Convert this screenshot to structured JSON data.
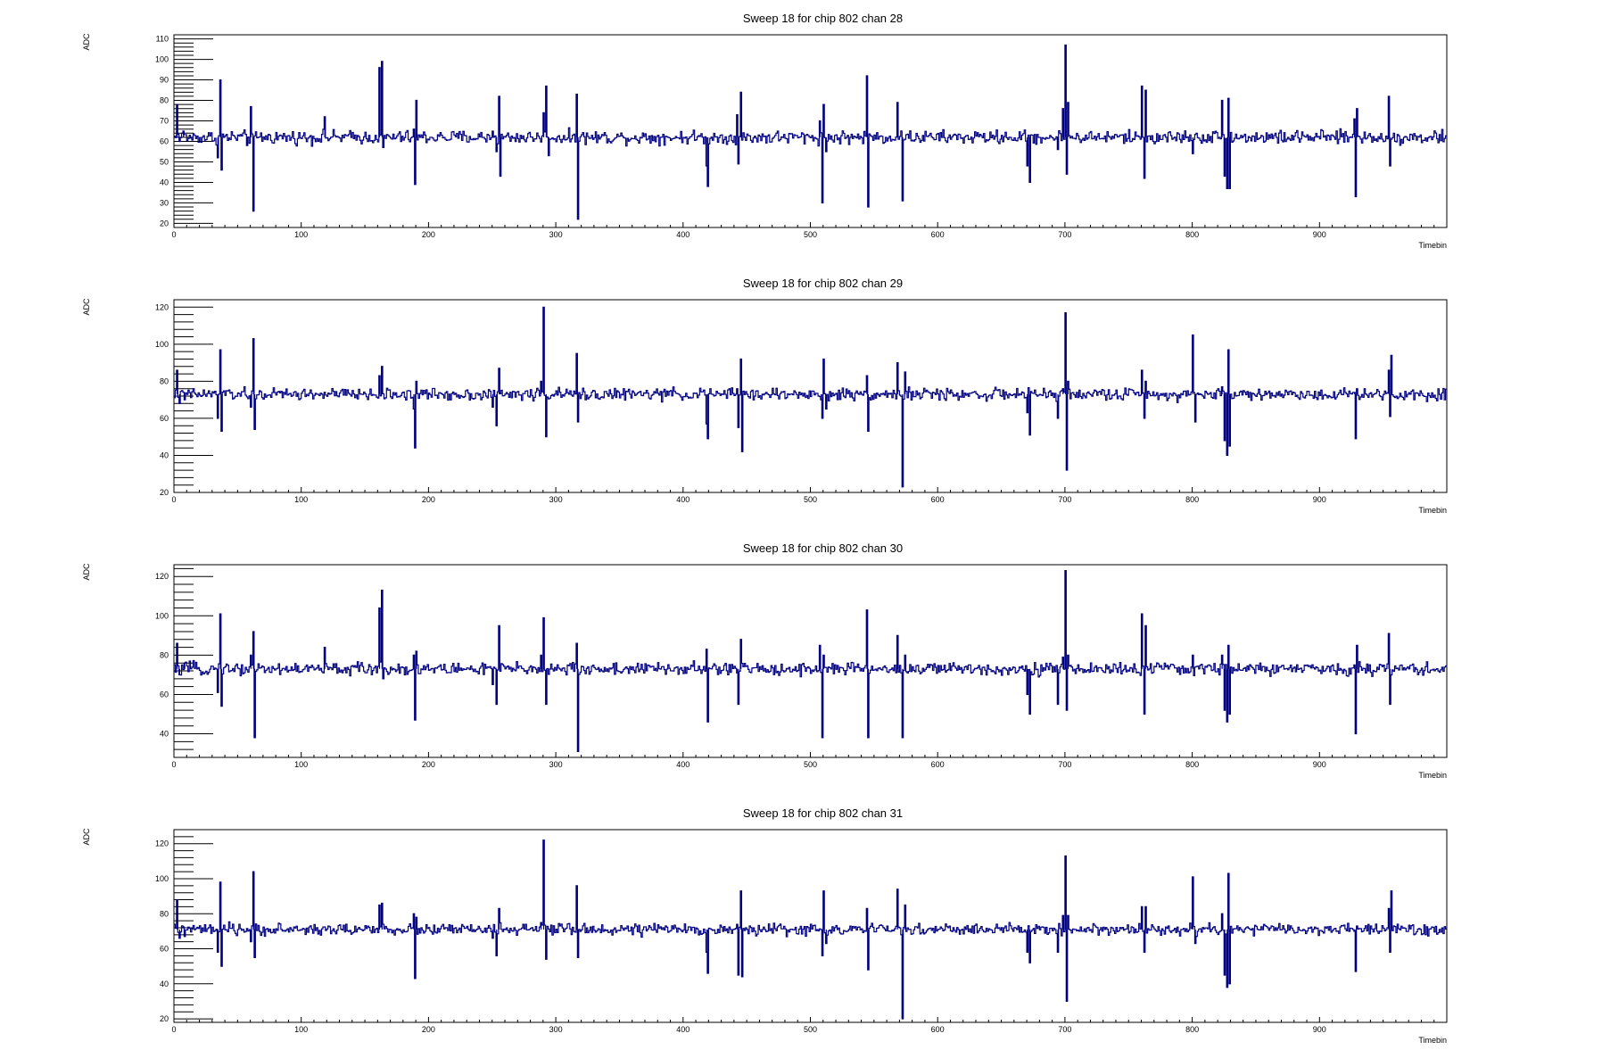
{
  "colors": {
    "series": "#000080",
    "axis": "#000000",
    "background": "#ffffff"
  },
  "chart_data": [
    {
      "type": "line",
      "title": "Sweep 18 for chip 802 chan 28",
      "xlabel": "Timebin",
      "ylabel": "ADC",
      "xlim": [
        0,
        1000
      ],
      "ylim": [
        18,
        112
      ],
      "xticks": [
        0,
        100,
        200,
        300,
        400,
        500,
        600,
        700,
        800,
        900
      ],
      "yticks": [
        20,
        30,
        40,
        50,
        60,
        70,
        80,
        90,
        100,
        110
      ],
      "series": [
        {
          "baseline": 62,
          "spikes": [
            [
              2,
              78
            ],
            [
              4,
              60
            ],
            [
              7,
              65
            ],
            [
              34,
              52
            ],
            [
              36,
              90
            ],
            [
              37,
              46
            ],
            [
              57,
              58
            ],
            [
              60,
              77
            ],
            [
              62,
              26
            ],
            [
              118,
              72
            ],
            [
              161,
              96
            ],
            [
              163,
              99
            ],
            [
              164,
              57
            ],
            [
              188,
              66
            ],
            [
              189,
              39
            ],
            [
              190,
              80
            ],
            [
              250,
              65
            ],
            [
              253,
              55
            ],
            [
              255,
              82
            ],
            [
              256,
              43
            ],
            [
              290,
              74
            ],
            [
              292,
              87
            ],
            [
              294,
              53
            ],
            [
              316,
              83
            ],
            [
              317,
              22
            ],
            [
              418,
              48
            ],
            [
              419,
              38
            ],
            [
              442,
              73
            ],
            [
              443,
              49
            ],
            [
              445,
              84
            ],
            [
              507,
              70
            ],
            [
              509,
              30
            ],
            [
              510,
              78
            ],
            [
              512,
              55
            ],
            [
              544,
              92
            ],
            [
              545,
              28
            ],
            [
              568,
              79
            ],
            [
              572,
              31
            ],
            [
              670,
              48
            ],
            [
              672,
              40
            ],
            [
              694,
              56
            ],
            [
              698,
              76
            ],
            [
              700,
              107
            ],
            [
              701,
              44
            ],
            [
              702,
              79
            ],
            [
              760,
              87
            ],
            [
              762,
              42
            ],
            [
              763,
              85
            ],
            [
              800,
              54
            ],
            [
              823,
              80
            ],
            [
              825,
              43
            ],
            [
              827,
              37
            ],
            [
              828,
              81
            ],
            [
              829,
              37
            ],
            [
              927,
              71
            ],
            [
              928,
              33
            ],
            [
              929,
              76
            ],
            [
              954,
              82
            ],
            [
              955,
              48
            ]
          ]
        }
      ]
    },
    {
      "type": "line",
      "title": "Sweep 18 for chip 802 chan 29",
      "xlabel": "Timebin",
      "ylabel": "ADC",
      "xlim": [
        0,
        1000
      ],
      "ylim": [
        20,
        124
      ],
      "xticks": [
        0,
        100,
        200,
        300,
        400,
        500,
        600,
        700,
        800,
        900
      ],
      "yticks": [
        20,
        40,
        60,
        80,
        100,
        120
      ],
      "series": [
        {
          "baseline": 73,
          "spikes": [
            [
              2,
              86
            ],
            [
              4,
              68
            ],
            [
              8,
              70
            ],
            [
              34,
              60
            ],
            [
              36,
              97
            ],
            [
              37,
              53
            ],
            [
              60,
              66
            ],
            [
              62,
              103
            ],
            [
              63,
              54
            ],
            [
              161,
              83
            ],
            [
              163,
              88
            ],
            [
              188,
              65
            ],
            [
              189,
              44
            ],
            [
              190,
              80
            ],
            [
              250,
              66
            ],
            [
              253,
              56
            ],
            [
              255,
              87
            ],
            [
              288,
              80
            ],
            [
              290,
              120
            ],
            [
              292,
              50
            ],
            [
              316,
              95
            ],
            [
              317,
              58
            ],
            [
              418,
              57
            ],
            [
              419,
              49
            ],
            [
              442,
              76
            ],
            [
              443,
              55
            ],
            [
              445,
              92
            ],
            [
              446,
              42
            ],
            [
              508,
              70
            ],
            [
              509,
              60
            ],
            [
              510,
              92
            ],
            [
              512,
              65
            ],
            [
              544,
              83
            ],
            [
              545,
              53
            ],
            [
              568,
              90
            ],
            [
              572,
              23
            ],
            [
              574,
              85
            ],
            [
              670,
              63
            ],
            [
              672,
              51
            ],
            [
              694,
              60
            ],
            [
              698,
              76
            ],
            [
              700,
              117
            ],
            [
              701,
              32
            ],
            [
              702,
              80
            ],
            [
              760,
              86
            ],
            [
              762,
              60
            ],
            [
              763,
              80
            ],
            [
              800,
              105
            ],
            [
              802,
              58
            ],
            [
              823,
              77
            ],
            [
              825,
              48
            ],
            [
              827,
              40
            ],
            [
              828,
              97
            ],
            [
              829,
              45
            ],
            [
              927,
              74
            ],
            [
              928,
              49
            ],
            [
              929,
              76
            ],
            [
              954,
              86
            ],
            [
              955,
              61
            ],
            [
              956,
              94
            ]
          ]
        }
      ]
    },
    {
      "type": "line",
      "title": "Sweep 18 for chip 802 chan 30",
      "xlabel": "Timebin",
      "ylabel": "ADC",
      "xlim": [
        0,
        1000
      ],
      "ylim": [
        28,
        126
      ],
      "xticks": [
        0,
        100,
        200,
        300,
        400,
        500,
        600,
        700,
        800,
        900
      ],
      "yticks": [
        40,
        60,
        80,
        100,
        120
      ],
      "series": [
        {
          "baseline": 73,
          "spikes": [
            [
              2,
              86
            ],
            [
              4,
              70
            ],
            [
              8,
              76
            ],
            [
              34,
              61
            ],
            [
              36,
              101
            ],
            [
              37,
              54
            ],
            [
              60,
              80
            ],
            [
              62,
              92
            ],
            [
              63,
              38
            ],
            [
              118,
              84
            ],
            [
              161,
              104
            ],
            [
              163,
              113
            ],
            [
              164,
              68
            ],
            [
              188,
              80
            ],
            [
              189,
              47
            ],
            [
              190,
              82
            ],
            [
              250,
              65
            ],
            [
              253,
              55
            ],
            [
              255,
              95
            ],
            [
              288,
              80
            ],
            [
              290,
              99
            ],
            [
              292,
              55
            ],
            [
              316,
              86
            ],
            [
              317,
              31
            ],
            [
              418,
              83
            ],
            [
              419,
              46
            ],
            [
              442,
              71
            ],
            [
              443,
              55
            ],
            [
              445,
              88
            ],
            [
              507,
              85
            ],
            [
              509,
              38
            ],
            [
              510,
              80
            ],
            [
              544,
              103
            ],
            [
              545,
              38
            ],
            [
              568,
              90
            ],
            [
              572,
              38
            ],
            [
              574,
              80
            ],
            [
              670,
              60
            ],
            [
              672,
              50
            ],
            [
              694,
              55
            ],
            [
              698,
              79
            ],
            [
              700,
              123
            ],
            [
              701,
              52
            ],
            [
              702,
              80
            ],
            [
              760,
              101
            ],
            [
              762,
              50
            ],
            [
              763,
              95
            ],
            [
              800,
              80
            ],
            [
              823,
              80
            ],
            [
              825,
              52
            ],
            [
              827,
              46
            ],
            [
              828,
              85
            ],
            [
              829,
              50
            ],
            [
              927,
              75
            ],
            [
              928,
              40
            ],
            [
              929,
              85
            ],
            [
              954,
              91
            ],
            [
              955,
              55
            ]
          ]
        }
      ]
    },
    {
      "type": "line",
      "title": "Sweep 18 for chip 802 chan 31",
      "xlabel": "Timebin",
      "ylabel": "ADC",
      "xlim": [
        0,
        1000
      ],
      "ylim": [
        18,
        128
      ],
      "xticks": [
        0,
        100,
        200,
        300,
        400,
        500,
        600,
        700,
        800,
        900
      ],
      "yticks": [
        20,
        40,
        60,
        80,
        100,
        120
      ],
      "series": [
        {
          "baseline": 71,
          "spikes": [
            [
              2,
              88
            ],
            [
              4,
              66
            ],
            [
              8,
              67
            ],
            [
              34,
              58
            ],
            [
              36,
              98
            ],
            [
              37,
              50
            ],
            [
              60,
              64
            ],
            [
              62,
              104
            ],
            [
              63,
              55
            ],
            [
              161,
              85
            ],
            [
              163,
              86
            ],
            [
              188,
              80
            ],
            [
              189,
              43
            ],
            [
              190,
              78
            ],
            [
              250,
              66
            ],
            [
              253,
              56
            ],
            [
              255,
              83
            ],
            [
              288,
              75
            ],
            [
              290,
              122
            ],
            [
              292,
              54
            ],
            [
              316,
              96
            ],
            [
              317,
              55
            ],
            [
              418,
              58
            ],
            [
              419,
              46
            ],
            [
              442,
              74
            ],
            [
              443,
              45
            ],
            [
              445,
              93
            ],
            [
              446,
              44
            ],
            [
              508,
              71
            ],
            [
              509,
              56
            ],
            [
              510,
              93
            ],
            [
              512,
              63
            ],
            [
              544,
              83
            ],
            [
              545,
              48
            ],
            [
              568,
              94
            ],
            [
              572,
              20
            ],
            [
              574,
              85
            ],
            [
              670,
              58
            ],
            [
              672,
              52
            ],
            [
              694,
              58
            ],
            [
              698,
              79
            ],
            [
              700,
              113
            ],
            [
              701,
              30
            ],
            [
              702,
              79
            ],
            [
              760,
              84
            ],
            [
              762,
              58
            ],
            [
              763,
              84
            ],
            [
              800,
              101
            ],
            [
              802,
              63
            ],
            [
              823,
              80
            ],
            [
              825,
              45
            ],
            [
              827,
              38
            ],
            [
              828,
              103
            ],
            [
              829,
              40
            ],
            [
              927,
              70
            ],
            [
              928,
              47
            ],
            [
              929,
              73
            ],
            [
              954,
              83
            ],
            [
              955,
              58
            ],
            [
              956,
              93
            ]
          ]
        }
      ]
    }
  ]
}
